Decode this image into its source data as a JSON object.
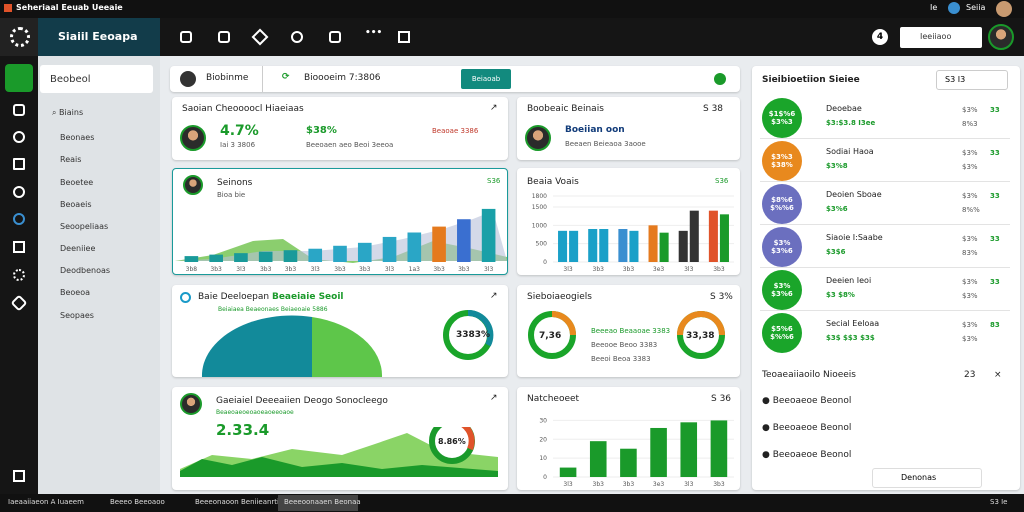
{
  "topbar": {
    "title": "Seheriaal Eeuab Ueeaie",
    "right": [
      "Ie",
      "Seiia"
    ]
  },
  "header": {
    "brand": "Siaiil Eeoapa",
    "search": "Ieeiiaoo",
    "badge": "4"
  },
  "sidebar": {
    "items": [
      "Beobeol",
      "Biains",
      "Beonaes",
      "Reais",
      "Beoetee",
      "Beoaeis",
      "Seoopeliaas",
      "Deeniiee",
      "Deodbenoas",
      "Beoeoa",
      "Seopaes"
    ]
  },
  "toolbar": {
    "title": "Biobinme",
    "status": "Bioooeim 7:3806",
    "button": "Beiaoab"
  },
  "cards": {
    "summary": {
      "title": "Saoian Cheoooocl Hiaeiaas",
      "value": "4.7%",
      "sub": "Iai 3 3806",
      "value2": "$38%",
      "sub2": "Beeoaen aeo Beoi 3eeoa",
      "value3": "Beaoae 3386"
    },
    "profile": {
      "title": "Boobeaic Beinais",
      "corner": "S 38",
      "name": "Boeiian oon",
      "sub": "Beeaen Beieaoa 3aooe"
    },
    "pie": {
      "title": "Baie Deeloepan",
      "highlight": "Beaeiaie Seoil",
      "sub": "Beiaiaea Beaeonaes Beiaeoaie 5886",
      "donut": "3383%"
    },
    "donuts": {
      "title": "Sieboiaeogiels",
      "corner": "S 3%",
      "left": "7,36",
      "right": "33,38",
      "lines": [
        "Beeeao Beaaoae 3383",
        "Beeooe Beoo 3383",
        "Beeoi Beoa 3383"
      ]
    },
    "area": {
      "title": "Gaeiaiel Deeeaiien Deogo Sonocleego",
      "sub": "Beaeoaeoeoaoeaoeeoaoe",
      "value": "2.33.4",
      "donut": "8.86%"
    }
  },
  "charts": [
    {
      "type": "bar",
      "title": "Seinons",
      "sub": "Bioa bie",
      "corner": "S36",
      "categories": [
        "3b8",
        "3b3",
        "3l3",
        "3b3",
        "3b3",
        "3l3",
        "3b3",
        "3b3",
        "3l3",
        "1a3",
        "3b3",
        "3b3",
        "3l3"
      ],
      "values": [
        8,
        10,
        12,
        14,
        16,
        18,
        22,
        26,
        34,
        40,
        48,
        58,
        72
      ],
      "colors": [
        "#1a9a9a",
        "#1a9a9a",
        "#1a9a9a",
        "#1a9a9a",
        "#1a9a9a",
        "#2aa6c6",
        "#2aa6c6",
        "#2aa6c6",
        "#2aa6c6",
        "#2aa6c6",
        "#e57a1e",
        "#3a6fd0",
        "#1aa0a8"
      ],
      "ylim": [
        0,
        80
      ]
    },
    {
      "type": "bar",
      "title": "Beaia Voais",
      "corner": "S36",
      "categories": [
        "3l3",
        "3b3",
        "3b3",
        "3e3",
        "3l3",
        "3b3"
      ],
      "values": [
        850,
        900,
        900,
        1000,
        850,
        1400
      ],
      "values2": [
        850,
        900,
        850,
        800,
        1400,
        1300
      ],
      "colors": [
        "#1aa0c8",
        "#1aa0c8",
        "#3a8fd0",
        "#e57a1e",
        "#333333",
        "#e0532a"
      ],
      "colors2": [
        "#1aa0c8",
        "#1aa0c8",
        "#1aa0c8",
        "#1a9a2a",
        "#333333",
        "#1a9a2a"
      ],
      "ylim": [
        0,
        1800
      ],
      "yticks": [
        0,
        500,
        1000,
        1500,
        1800
      ]
    },
    {
      "type": "bar",
      "title": "Natcheoeet",
      "corner": "S 36",
      "categories": [
        "3l3",
        "3b3",
        "3b3",
        "3e3",
        "3l3",
        "3b3"
      ],
      "values": [
        5,
        19,
        15,
        26,
        29,
        30
      ],
      "colors": [
        "#1a9a2a",
        "#1a9a2a",
        "#1a9a2a",
        "#1a9a2a",
        "#1a9a2a",
        "#1a9a2a"
      ],
      "ylim": [
        0,
        35
      ],
      "yticks": [
        0,
        10,
        20,
        30
      ]
    }
  ],
  "right": {
    "title": "Sieibioetiion Sieiee",
    "corner": "S3 I3",
    "items": [
      {
        "circle": "$1$%6 $3%3",
        "color": "#1aa52a",
        "name": "Deoebae",
        "v1": "$3%",
        "line": "$3:$3.8 I3ee",
        "v2": "8%3",
        "v3": "33"
      },
      {
        "circle": "$3%3 $38%",
        "color": "#e8891e",
        "name": "Sodiai Haoa",
        "v1": "$3%",
        "line": "$3%8",
        "v2": "$3%",
        "v3": "33"
      },
      {
        "circle": "$8%6 $%%6",
        "color": "#6b6fbf",
        "name": "Deoien Sboae",
        "v1": "$3%",
        "line": "$3%6",
        "v2": "8%%",
        "v3": "33"
      },
      {
        "circle": "$3% $3%6",
        "color": "#6b6fbf",
        "name": "Siaoie I:Saabe",
        "v1": "$3%",
        "line": "$3$6",
        "v2": "83%",
        "v3": "33"
      },
      {
        "circle": "$3% $3%6",
        "color": "#1aa52a",
        "name": "Deeien Ieoi",
        "v1": "$3%",
        "line": "$3 $8%",
        "v2": "$3%",
        "v3": "33"
      },
      {
        "circle": "$5%6 $%%6",
        "color": "#1aa52a",
        "name": "Secial Eeloaa",
        "v1": "$3%",
        "line": "$3$ $$3 $3$",
        "v2": "$3%",
        "v3": "83"
      }
    ],
    "section": "Teoaeaiiaoilo Nioeeis",
    "section_corner": "23",
    "links": [
      "Beeoaeoe Beonol",
      "Beeoaeoe Beonol",
      "Beeoaeoe Beonol"
    ],
    "button": "Denonas"
  },
  "taskbar": [
    "Iaeaaiiaeon A Iuaeem",
    "Beeeo Beeoaoo",
    "Beeeonaoon Beniieanrtiaa",
    "Beeeoonaaen Beonaa"
  ],
  "clock": "S3 Ie"
}
